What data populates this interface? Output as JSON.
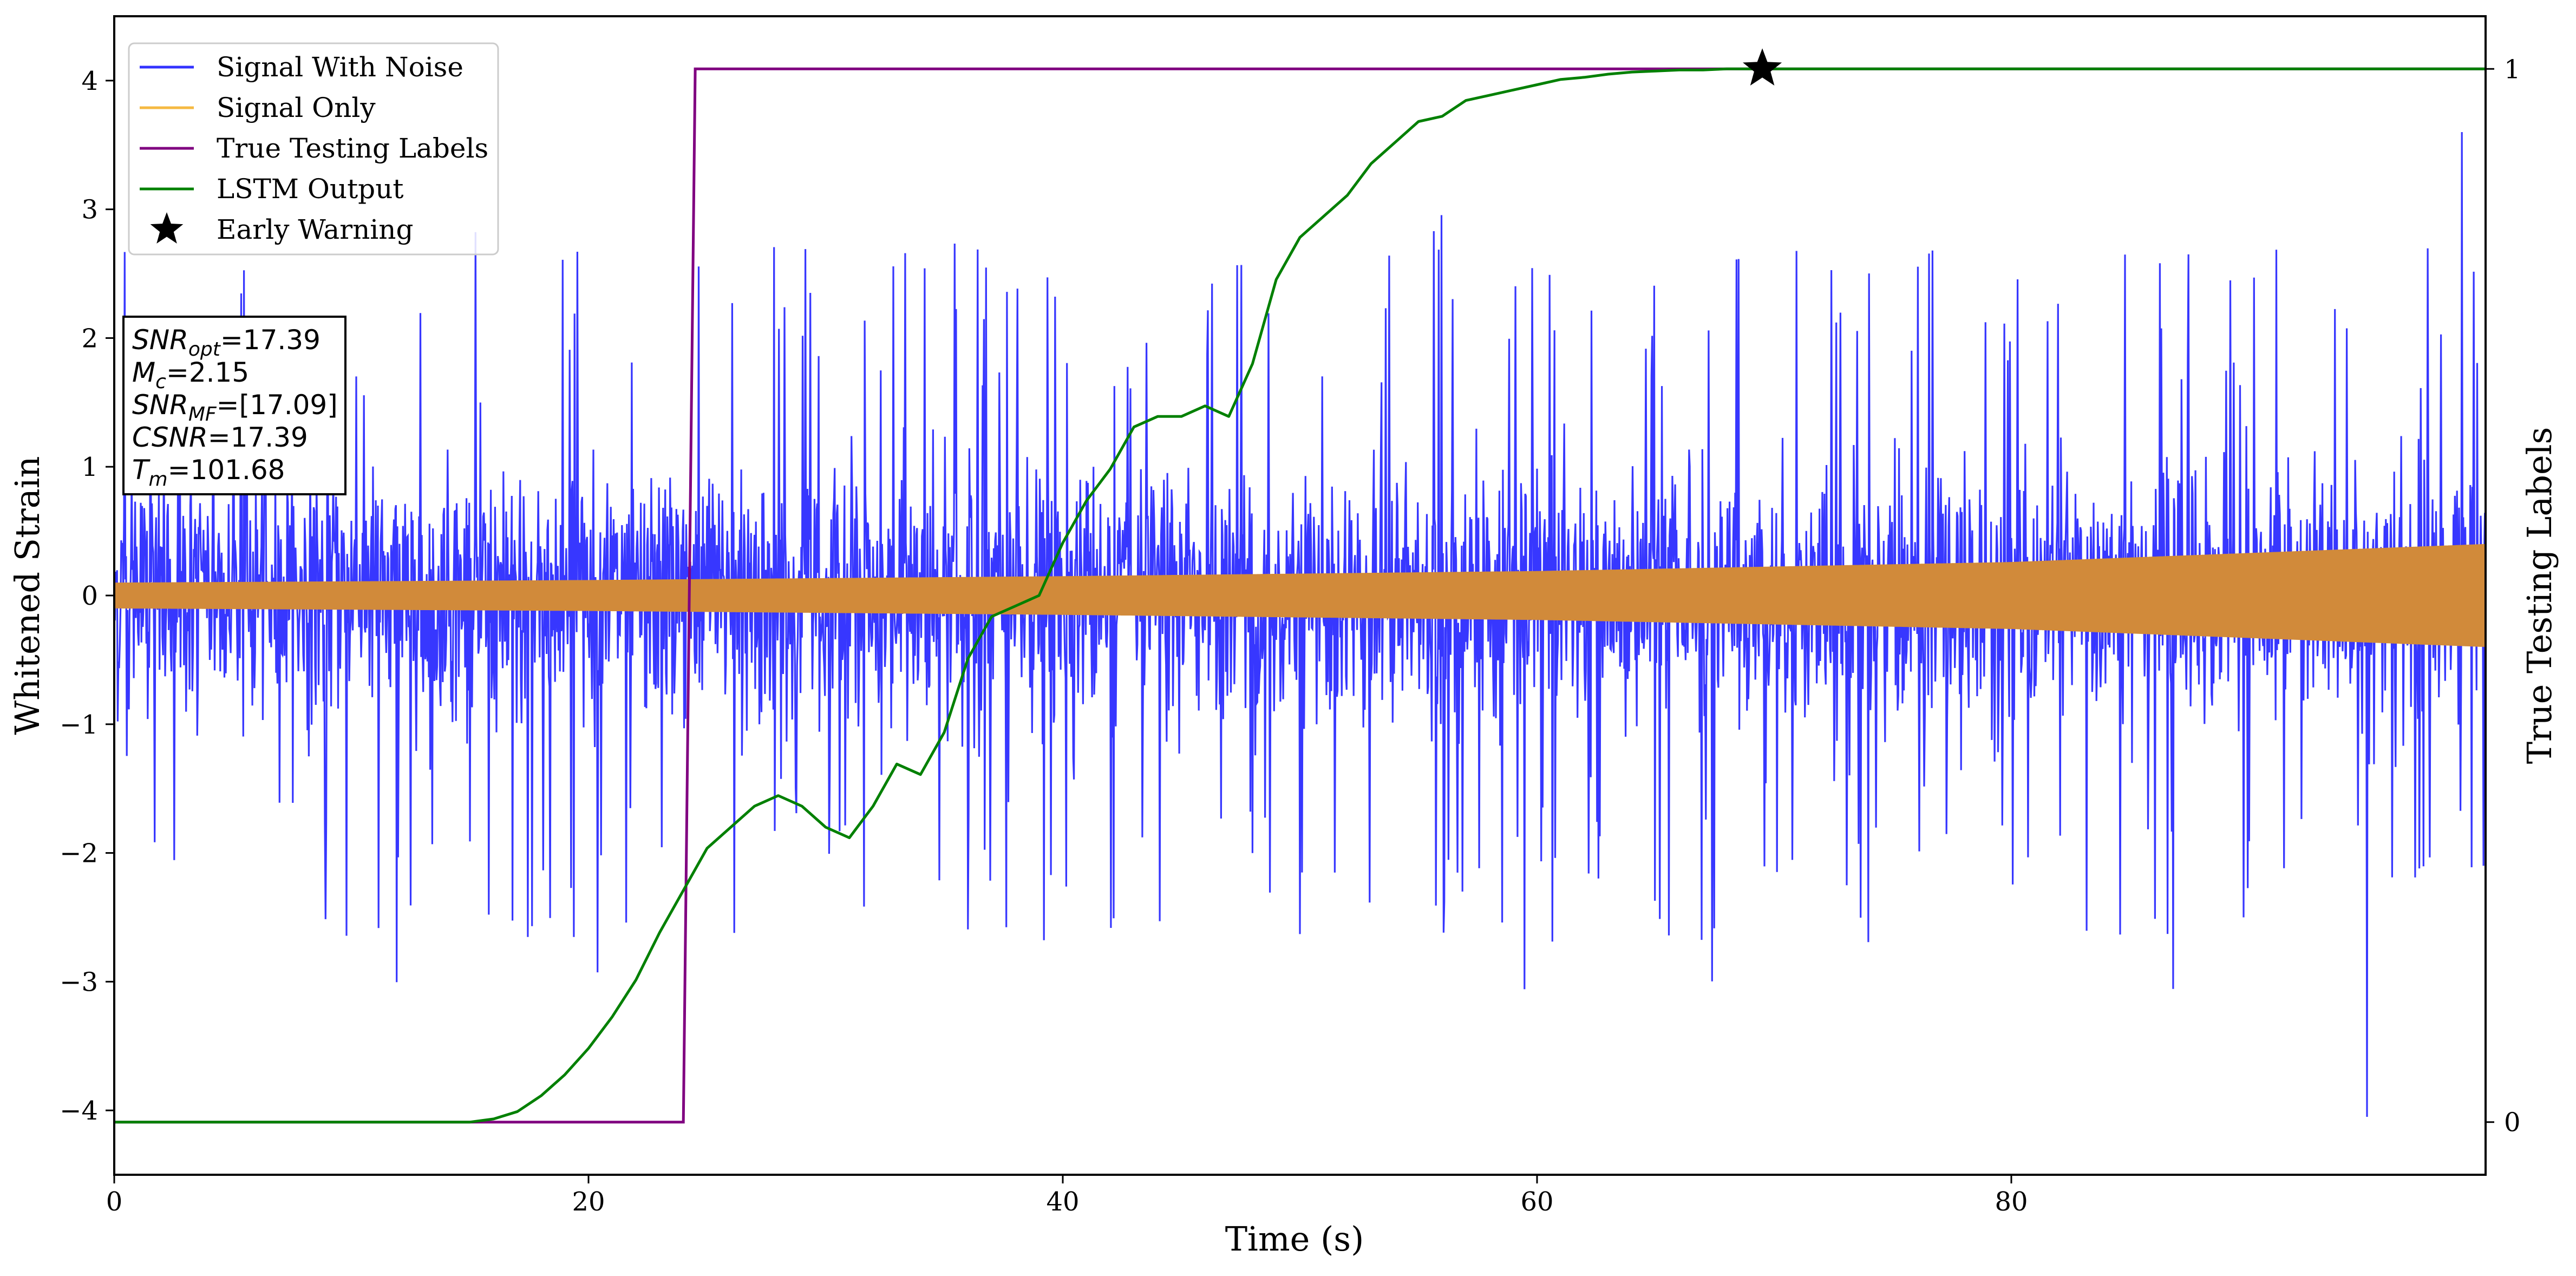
{
  "chart_data": {
    "type": "line",
    "title": "",
    "xlabel": "Time (s)",
    "ylabel": "Whitened Strain",
    "ylabel_right": "True Testing Labels",
    "xlim": [
      0,
      100
    ],
    "ylim": [
      -4.5,
      4.5
    ],
    "ylim_right": [
      -0.05,
      1.05
    ],
    "x_ticks": [
      0,
      20,
      40,
      60,
      80
    ],
    "y_ticks": [
      -4,
      -3,
      -2,
      -1,
      0,
      1,
      2,
      3,
      4
    ],
    "y_ticks_right": [
      0,
      1
    ],
    "grid": false,
    "legend_position": "top-left",
    "series": [
      {
        "name": "Signal With Noise",
        "axis": "left",
        "color": "#3333ff",
        "description_values": {
          "typical_envelope": [
            -1.3,
            1.3
          ],
          "spike_max": 3.6,
          "spike_min": -4.05
        }
      },
      {
        "name": "Signal Only",
        "axis": "left",
        "color": "#f5b942",
        "envelope_x": [
          0,
          20,
          40,
          60,
          80,
          100
        ],
        "envelope_amplitude": [
          0.1,
          0.12,
          0.15,
          0.19,
          0.26,
          0.4
        ]
      },
      {
        "name": "True Testing Labels",
        "axis": "right",
        "color": "#800080",
        "x": [
          0,
          24.0,
          24.5,
          100
        ],
        "y": [
          0,
          0,
          1,
          1
        ]
      },
      {
        "name": "LSTM Output",
        "axis": "right",
        "color": "#008000",
        "x": [
          0,
          15,
          16,
          17,
          18,
          19,
          20,
          21,
          22,
          23,
          24,
          25,
          26,
          27,
          28,
          29,
          30,
          31,
          32,
          33,
          34,
          35,
          36,
          37,
          38,
          39,
          40,
          41,
          42,
          43,
          44,
          45,
          46,
          47,
          48,
          49,
          50,
          51,
          52,
          53,
          54,
          55,
          56,
          57,
          58,
          59,
          60,
          61,
          62,
          63,
          64,
          65,
          66,
          67,
          68,
          69,
          70,
          75,
          80,
          90,
          100
        ],
        "y": [
          0,
          0,
          0.003,
          0.01,
          0.025,
          0.045,
          0.07,
          0.1,
          0.135,
          0.18,
          0.22,
          0.26,
          0.28,
          0.3,
          0.31,
          0.3,
          0.28,
          0.27,
          0.3,
          0.34,
          0.33,
          0.37,
          0.44,
          0.48,
          0.49,
          0.5,
          0.55,
          0.59,
          0.62,
          0.66,
          0.67,
          0.67,
          0.68,
          0.67,
          0.72,
          0.8,
          0.84,
          0.86,
          0.88,
          0.91,
          0.93,
          0.95,
          0.955,
          0.97,
          0.975,
          0.98,
          0.985,
          0.99,
          0.992,
          0.995,
          0.997,
          0.998,
          0.999,
          0.999,
          1.0,
          1.0,
          1.0,
          1.0,
          1.0,
          1.0,
          1.0
        ]
      },
      {
        "name": "Early Warning",
        "axis": "right",
        "color": "#000000",
        "x": [
          69.5
        ],
        "y": [
          1.0
        ],
        "marker": "star"
      }
    ],
    "info_box": [
      {
        "base": "SNR",
        "sub": "opt",
        "value": "=17.39"
      },
      {
        "base": "M",
        "sub": "c",
        "value": "=2.15"
      },
      {
        "base": "SNR",
        "sub": "MF",
        "value": "=[17.09]"
      },
      {
        "base": "CSNR",
        "sub": "",
        "value": "=17.39"
      },
      {
        "base": "T",
        "sub": "m",
        "value": "=101.68"
      }
    ]
  }
}
